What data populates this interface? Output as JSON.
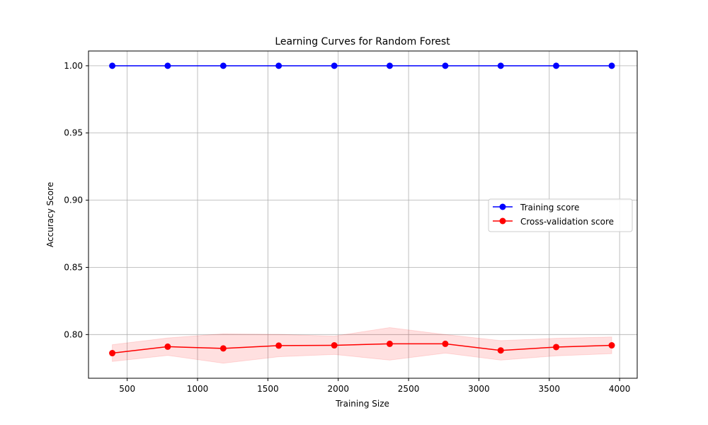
{
  "chart_data": {
    "type": "line",
    "title": "Learning Curves for Random Forest",
    "xlabel": "Training Size",
    "ylabel": "Accuracy Score",
    "xlim": [
      225,
      4125
    ],
    "ylim": [
      0.7675,
      1.011
    ],
    "xticks": [
      500,
      1000,
      1500,
      2000,
      2500,
      3000,
      3500,
      4000
    ],
    "yticks": [
      0.8,
      0.85,
      0.9,
      0.95,
      1.0
    ],
    "grid": true,
    "legend_position": "center-right",
    "x": [
      394,
      788,
      1183,
      1577,
      1972,
      2366,
      2761,
      3155,
      3549,
      3944
    ],
    "series": [
      {
        "name": "Training score",
        "color": "#0000ff",
        "values": [
          1.0,
          1.0,
          1.0,
          1.0,
          1.0,
          1.0,
          1.0,
          1.0,
          1.0,
          1.0
        ]
      },
      {
        "name": "Cross-validation score",
        "color": "#ff0000",
        "band_color": "#ff0000",
        "values": [
          0.7862,
          0.791,
          0.7897,
          0.7918,
          0.792,
          0.7931,
          0.7931,
          0.7882,
          0.7907,
          0.792
        ],
        "band_lower": [
          0.78,
          0.7845,
          0.7787,
          0.7835,
          0.7852,
          0.781,
          0.7862,
          0.781,
          0.7842,
          0.7858
        ],
        "band_upper": [
          0.7925,
          0.7975,
          0.8005,
          0.8001,
          0.7988,
          0.8052,
          0.8,
          0.7955,
          0.7972,
          0.7982
        ]
      }
    ]
  }
}
